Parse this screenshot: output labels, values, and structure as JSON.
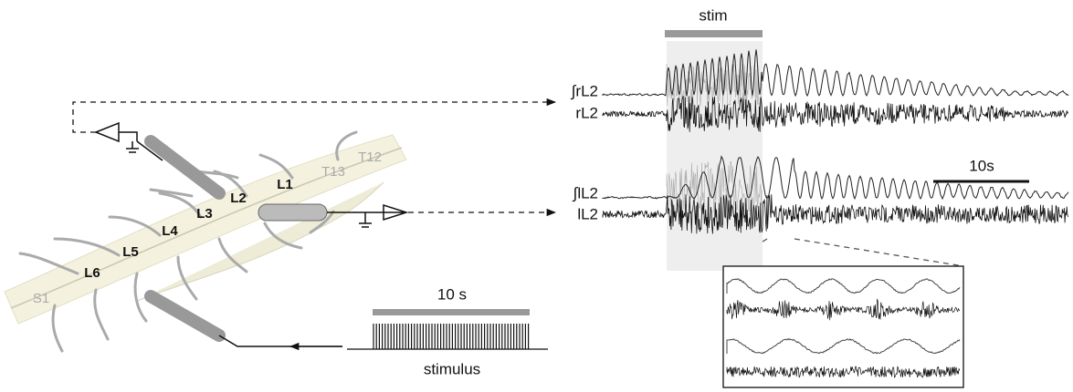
{
  "header": {
    "stim_label": "stim"
  },
  "traces": [
    {
      "integrated": "∫rL2",
      "raw": "rL2"
    },
    {
      "integrated": "∫lL2",
      "raw": "lL2"
    }
  ],
  "scale_bar": "10s",
  "stimulus": {
    "duration": "10 s",
    "label": "stimulus"
  },
  "segments": [
    "L1",
    "L2",
    "L3",
    "L4",
    "L5",
    "L6"
  ],
  "thoracic": [
    "T13",
    "T12"
  ],
  "sacral": "S1"
}
